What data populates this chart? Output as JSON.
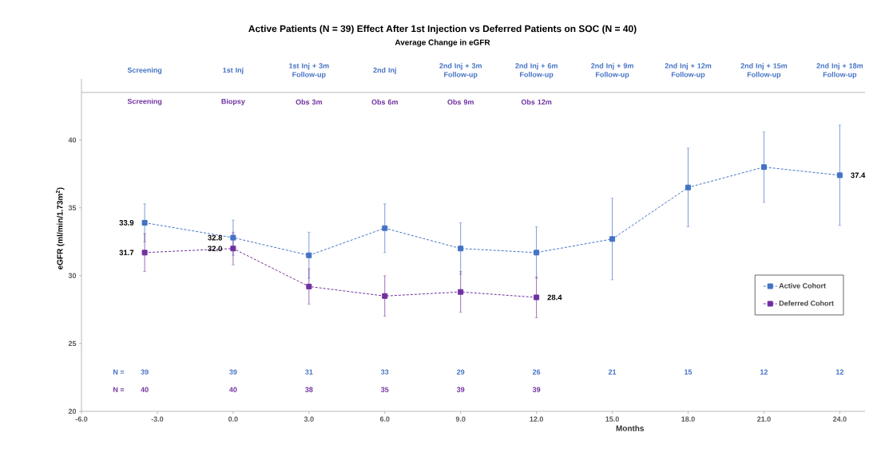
{
  "chart_data": {
    "type": "line",
    "title": "Active Patients (N = 39) Effect After 1st Injection vs Deferred Patients on SOC (N = 40)",
    "subtitle": "Average Change in eGFR",
    "xlabel": "Months",
    "ylabel": "eGFR (ml/min/1.73m$^{2}$)",
    "x": [
      -3.5,
      0,
      3,
      6,
      9,
      12,
      15,
      18,
      21,
      24
    ],
    "series": [
      {
        "name": "Active Cohort",
        "color": "#4472c4",
        "values": [
          33.9,
          32.8,
          31.5,
          33.5,
          32.0,
          31.7,
          32.7,
          36.5,
          38.0,
          37.4
        ],
        "errors": [
          1.4,
          1.3,
          1.7,
          1.8,
          1.9,
          1.9,
          3.0,
          2.9,
          2.6,
          3.7
        ],
        "value_labels": [
          "33.9",
          "32.8",
          null,
          null,
          null,
          null,
          null,
          null,
          null,
          "37.4"
        ]
      },
      {
        "name": "Deferred Cohort",
        "color": "#7030a0",
        "values": [
          31.7,
          32.0,
          29.2,
          28.5,
          28.8,
          28.4,
          null,
          null,
          null,
          null
        ],
        "errors": [
          1.4,
          1.2,
          1.3,
          1.5,
          1.5,
          1.5,
          null,
          null,
          null,
          null
        ],
        "value_labels": [
          "31.7",
          "32.0",
          null,
          null,
          null,
          "28.4",
          null,
          null,
          null,
          null
        ]
      }
    ],
    "xlim": [
      -6,
      25
    ],
    "ylim": [
      20,
      44.5
    ],
    "xticks": [
      {
        "value": -6,
        "label": "-6.0"
      },
      {
        "value": -3,
        "label": "-3.0"
      },
      {
        "value": 0,
        "label": "0.0"
      },
      {
        "value": 3,
        "label": "3.0"
      },
      {
        "value": 6,
        "label": "6.0"
      },
      {
        "value": 9,
        "label": "9.0"
      },
      {
        "value": 12,
        "label": "12.0"
      },
      {
        "value": 15,
        "label": "15.0"
      },
      {
        "value": 18,
        "label": "18.0"
      },
      {
        "value": 21,
        "label": "21.0"
      },
      {
        "value": 24,
        "label": "24.0"
      }
    ],
    "yticks": [
      20,
      25,
      30,
      35,
      40
    ],
    "ref_lines": [
      {
        "axis": "y",
        "value": 43.5,
        "color": "#a6a6a6"
      }
    ],
    "annotations": [
      "Screening",
      "1st Inj",
      "1st Inj + 3m Follow-up",
      "2nd Inj",
      "2nd Inj + 3m Follow-up",
      "2nd Inj + 6m Follow-up",
      "2nd Inj + 9m Follow-up",
      "2nd Inj + 12m Follow-up",
      "2nd Inj + 15m Follow-up",
      "2nd Inj + 18m Follow-up",
      "Screening",
      "Biopsy",
      "Obs 3m",
      "Obs 6m",
      "Obs 9m",
      "Obs 12m",
      "N =",
      "39",
      "39",
      "31",
      "33",
      "29",
      "26",
      "21",
      "15",
      "12",
      "12",
      "N =",
      "40",
      "40",
      "38",
      "35",
      "39",
      "39"
    ],
    "legend": "right",
    "marker": "square",
    "line_style": "dashed",
    "grid": false
  }
}
